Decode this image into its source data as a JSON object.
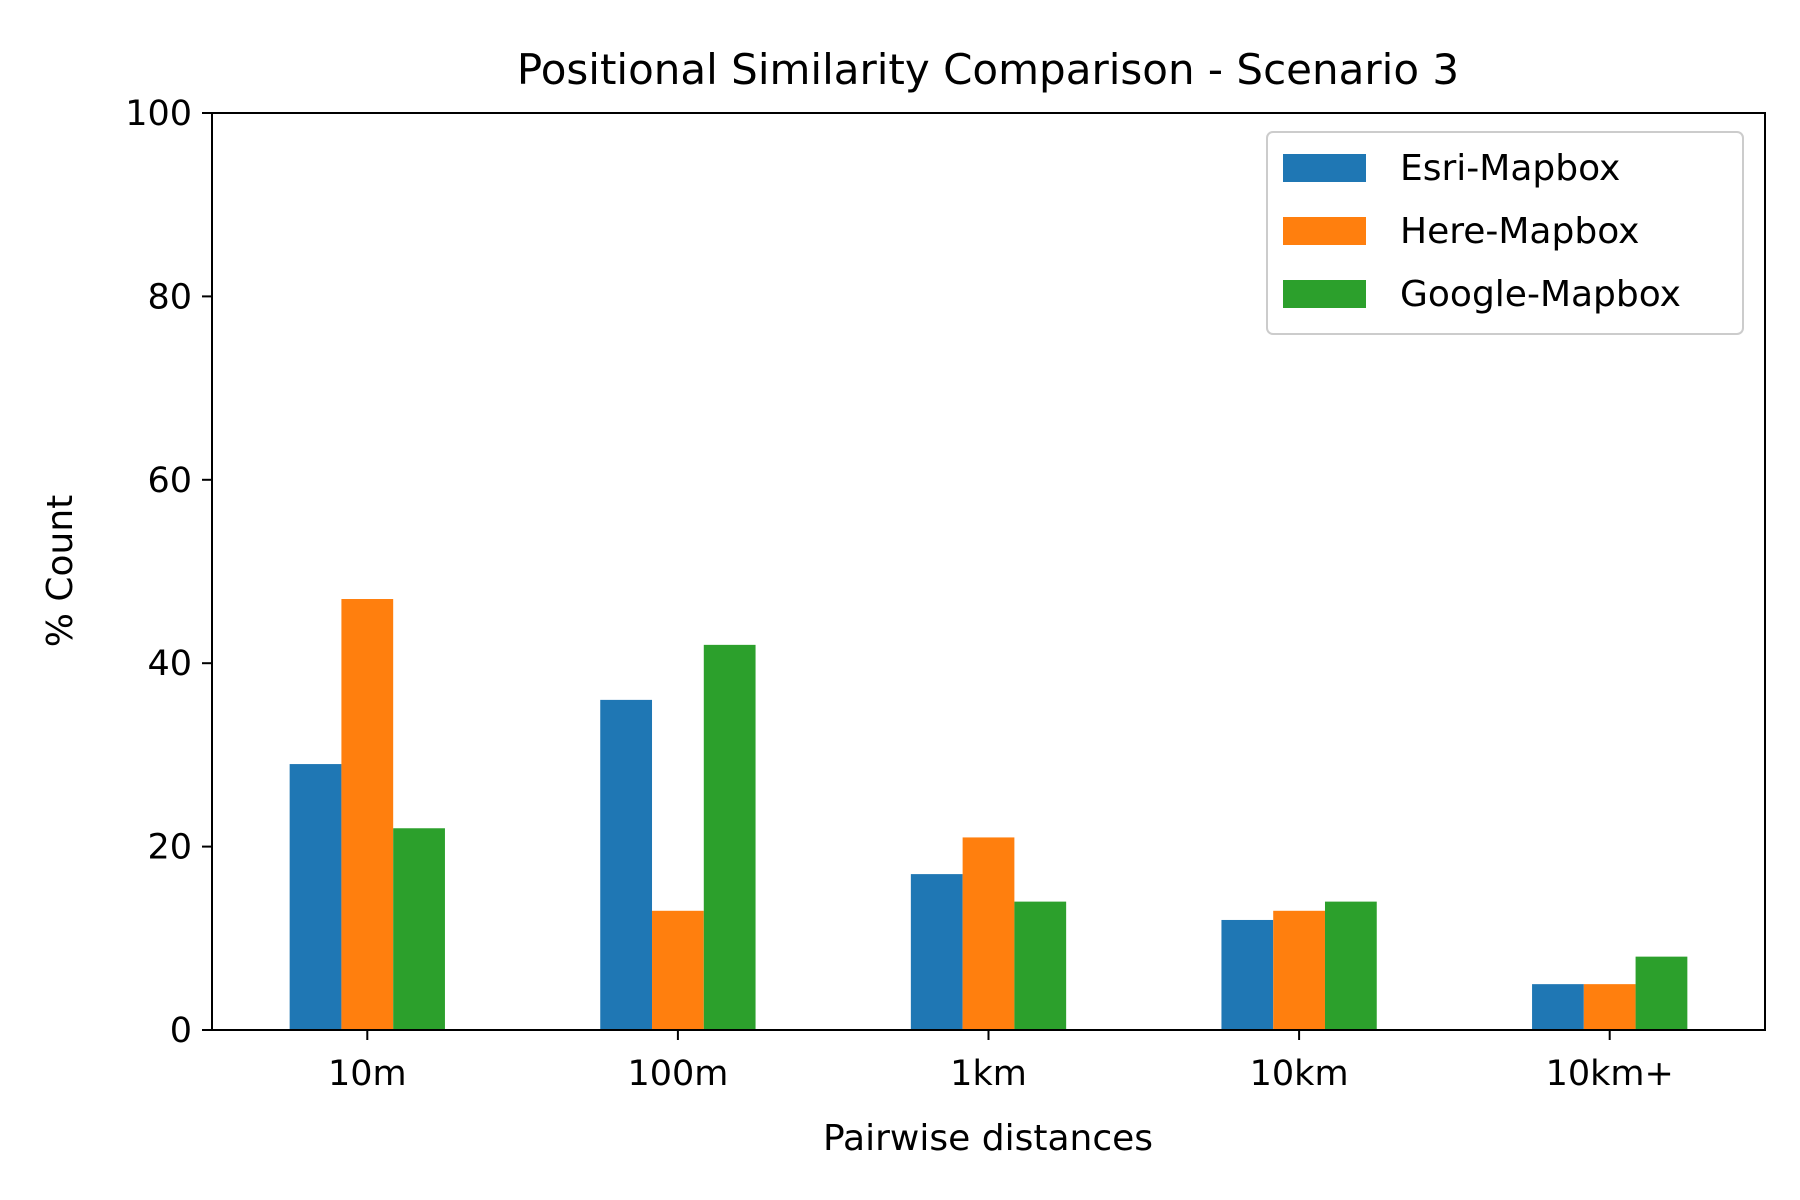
{
  "chart_data": {
    "type": "bar",
    "title": "Positional Similarity Comparison - Scenario 3",
    "xlabel": "Pairwise distances",
    "ylabel": "% Count",
    "categories": [
      "10m",
      "100m",
      "1km",
      "10km",
      "10km+"
    ],
    "series": [
      {
        "name": "Esri-Mapbox",
        "color": "#1f77b4",
        "values": [
          29,
          36,
          17,
          12,
          5
        ]
      },
      {
        "name": "Here-Mapbox",
        "color": "#ff7f0e",
        "values": [
          47,
          13,
          21,
          13,
          5
        ]
      },
      {
        "name": "Google-Mapbox",
        "color": "#2ca02c",
        "values": [
          22,
          42,
          14,
          14,
          8
        ]
      }
    ],
    "ylim": [
      0,
      100
    ],
    "yticks": [
      0,
      20,
      40,
      60,
      80,
      100
    ],
    "grid": false,
    "legend_position": "top-right"
  }
}
